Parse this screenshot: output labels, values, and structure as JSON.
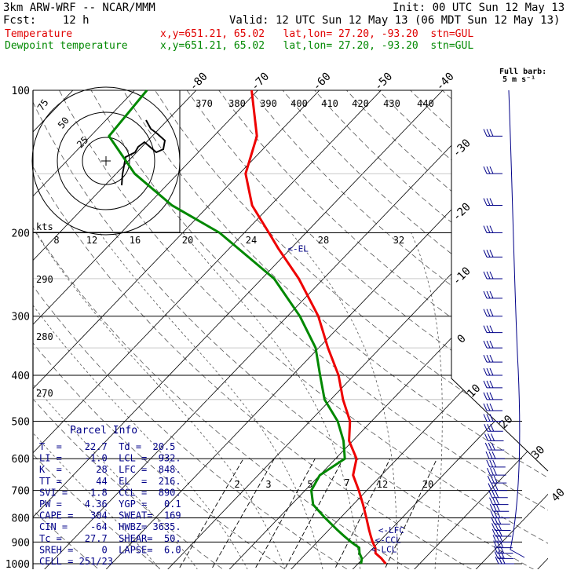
{
  "header": {
    "model": "3km ARW-WRF -- NCAR/MMM",
    "init": "Init: 00 UTC Sun 12 May 13",
    "fcst": "Fcst:    12 h",
    "valid": "Valid: 12 UTC Sun 12 May 13 (06 MDT Sun 12 May 13)",
    "temp_label": "Temperature",
    "temp_info": "x,y=651.21, 65.02   lat,lon= 27.20, -93.20  stn=GUL",
    "dew_label": "Dewpoint temperature",
    "dew_info": "x,y=651.21, 65.02   lat,lon= 27.20, -93.20  stn=GUL"
  },
  "chart_data": {
    "type": "line",
    "title": "",
    "ylabel": "",
    "xlabel": "",
    "y_scale": "log",
    "ylim": [
      1000,
      100
    ],
    "pressure_ticks": [
      100,
      200,
      300,
      400,
      500,
      600,
      700,
      800,
      900,
      1000
    ],
    "temp_ticks": [
      -80,
      -70,
      -60,
      -50,
      -40,
      -30,
      -20,
      -10,
      0,
      10,
      20,
      30,
      40
    ],
    "theta_labels": [
      "370",
      "380",
      "390",
      "400",
      "410",
      "420",
      "430",
      "440"
    ],
    "theta_side_labels": [
      "290",
      "280",
      "270"
    ],
    "mixing_ratio_labels": [
      "2",
      "3",
      "5",
      "7",
      "12",
      "20"
    ],
    "barb_legend": [
      "Full barb:",
      "5 m s⁻¹"
    ],
    "series": [
      {
        "name": "Temperature",
        "color": "#ee0000",
        "points": [
          {
            "p": 1000,
            "t": 24.5
          },
          {
            "p": 975,
            "t": 23.0
          },
          {
            "p": 950,
            "t": 21.2
          },
          {
            "p": 925,
            "t": 20.3
          },
          {
            "p": 900,
            "t": 19.0
          },
          {
            "p": 875,
            "t": 17.8
          },
          {
            "p": 850,
            "t": 16.6
          },
          {
            "p": 800,
            "t": 14.2
          },
          {
            "p": 750,
            "t": 11.6
          },
          {
            "p": 700,
            "t": 8.7
          },
          {
            "p": 650,
            "t": 5.4
          },
          {
            "p": 600,
            "t": 3.4
          },
          {
            "p": 550,
            "t": -0.6
          },
          {
            "p": 500,
            "t": -3.5
          },
          {
            "p": 450,
            "t": -8.0
          },
          {
            "p": 400,
            "t": -12.5
          },
          {
            "p": 350,
            "t": -18.5
          },
          {
            "p": 300,
            "t": -25.0
          },
          {
            "p": 250,
            "t": -34.0
          },
          {
            "p": 216,
            "t": -42.0
          },
          {
            "p": 200,
            "t": -46.0
          },
          {
            "p": 175,
            "t": -53.0
          },
          {
            "p": 150,
            "t": -59.0
          },
          {
            "p": 125,
            "t": -63.0
          },
          {
            "p": 100,
            "t": -71.0
          }
        ]
      },
      {
        "name": "Dewpoint temperature",
        "color": "#008800",
        "points": [
          {
            "p": 1000,
            "t": 20.5
          },
          {
            "p": 975,
            "t": 19.8
          },
          {
            "p": 950,
            "t": 18.6
          },
          {
            "p": 925,
            "t": 17.7
          },
          {
            "p": 900,
            "t": 15.5
          },
          {
            "p": 875,
            "t": 13.5
          },
          {
            "p": 850,
            "t": 11.5
          },
          {
            "p": 800,
            "t": 7.5
          },
          {
            "p": 750,
            "t": 3.5
          },
          {
            "p": 700,
            "t": 1.0
          },
          {
            "p": 650,
            "t": 0.0
          },
          {
            "p": 600,
            "t": 1.5
          },
          {
            "p": 550,
            "t": -1.5
          },
          {
            "p": 500,
            "t": -5.5
          },
          {
            "p": 450,
            "t": -11.0
          },
          {
            "p": 400,
            "t": -15.5
          },
          {
            "p": 350,
            "t": -20.5
          },
          {
            "p": 300,
            "t": -28.0
          },
          {
            "p": 250,
            "t": -38.0
          },
          {
            "p": 200,
            "t": -54.0
          },
          {
            "p": 175,
            "t": -66.0
          },
          {
            "p": 150,
            "t": -77.0
          },
          {
            "p": 125,
            "t": -87.0
          },
          {
            "p": 100,
            "t": -88.0
          }
        ]
      }
    ],
    "level_markers": [
      {
        "label": "<-EL",
        "p": 216,
        "t": -41.0
      },
      {
        "label": "<-LFC",
        "p": 848,
        "t": 17.5
      },
      {
        "label": "<-CCL",
        "p": 890,
        "t": 18.5
      },
      {
        "label": "<-LCL",
        "p": 932,
        "t": 19.3
      }
    ],
    "hodograph": {
      "ring_labels": [
        "75",
        "50",
        "25"
      ],
      "kts_label": "kts"
    }
  },
  "parcel_info": {
    "title": "Parcel Info",
    "rows": [
      "T  =    22.7  Td =  20.5",
      "LI =    -1.0  LCL =  932.",
      "K  =      28  LFC =  848.",
      "TT =      44  EL  =  216.",
      "SVI =    1.8  CCL =  890.",
      "PW =    4.36  YGP =   0.1",
      "CAPE =   304  SWEAT=  169",
      "CIN =    -64  HWBZ= 3635.",
      "Tc =    27.7  SHEAR=  50.",
      "SREH =     0  LAPSE=  6.0",
      "CELL = 251/23"
    ]
  }
}
